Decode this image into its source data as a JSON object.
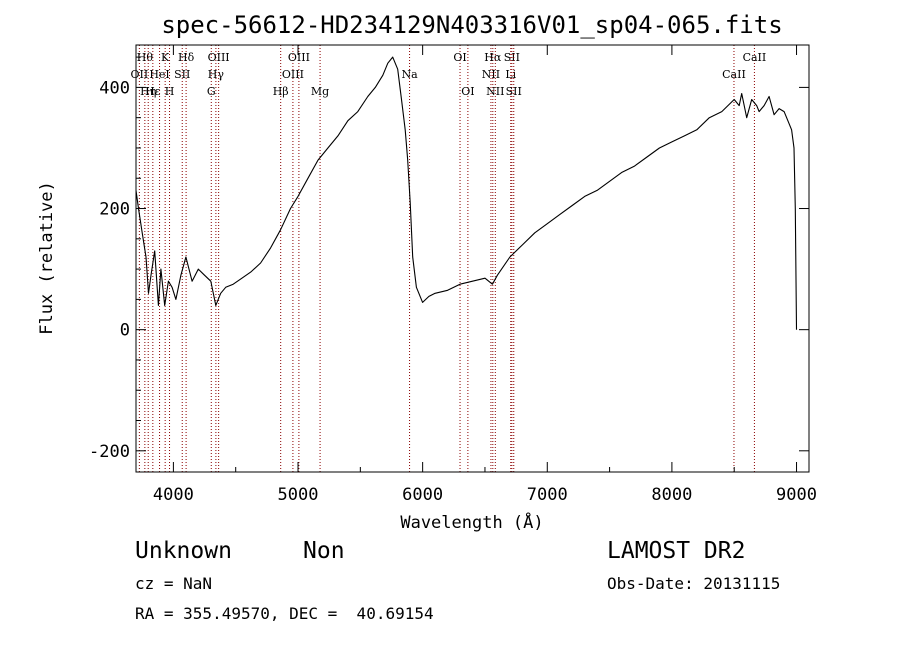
{
  "chart_data": {
    "type": "line",
    "title": "spec-56612-HD234129N403316V01_sp04-065.fits",
    "xlabel": "Wavelength (Å)",
    "ylabel": "Flux (relative)",
    "xlim": [
      3700,
      9100
    ],
    "ylim": [
      -235,
      470
    ],
    "x_ticks": [
      4000,
      5000,
      6000,
      7000,
      8000,
      9000
    ],
    "y_ticks": [
      -200,
      0,
      200,
      400
    ],
    "series": [
      {
        "x": [
          3700,
          3720,
          3750,
          3780,
          3800,
          3820,
          3850,
          3880,
          3900,
          3930,
          3960,
          3990,
          4020,
          4060,
          4100,
          4150,
          4200,
          4250,
          4300,
          4340,
          4380,
          4420,
          4480,
          4550,
          4620,
          4700,
          4780,
          4860,
          4940,
          5000,
          5080,
          5160,
          5240,
          5320,
          5400,
          5480,
          5560,
          5620,
          5680,
          5720,
          5760,
          5800,
          5830,
          5860,
          5880,
          5900,
          5920,
          5950,
          6000,
          6050,
          6100,
          6200,
          6300,
          6400,
          6500,
          6560,
          6600,
          6700,
          6800,
          6900,
          7000,
          7100,
          7200,
          7300,
          7400,
          7500,
          7600,
          7700,
          7800,
          7900,
          8000,
          8100,
          8200,
          8300,
          8400,
          8500,
          8540,
          8560,
          8600,
          8640,
          8680,
          8700,
          8740,
          8780,
          8820,
          8860,
          8900,
          8940,
          8960,
          8980,
          8990,
          9000
        ],
        "y": [
          230,
          200,
          160,
          120,
          60,
          90,
          130,
          40,
          100,
          40,
          80,
          70,
          50,
          90,
          120,
          80,
          100,
          90,
          80,
          40,
          60,
          70,
          75,
          85,
          95,
          110,
          135,
          165,
          200,
          220,
          250,
          280,
          300,
          320,
          345,
          360,
          385,
          400,
          420,
          440,
          450,
          430,
          380,
          330,
          280,
          210,
          120,
          70,
          45,
          55,
          60,
          65,
          75,
          80,
          85,
          75,
          90,
          120,
          140,
          160,
          175,
          190,
          205,
          220,
          230,
          245,
          260,
          270,
          285,
          300,
          310,
          320,
          330,
          350,
          360,
          380,
          370,
          390,
          350,
          380,
          370,
          360,
          370,
          385,
          355,
          365,
          360,
          340,
          330,
          300,
          200,
          0
        ]
      }
    ],
    "line_markers": [
      {
        "x": 3727,
        "label": "OII",
        "row": 2
      },
      {
        "x": 3771,
        "label": "Hθ",
        "row": 1
      },
      {
        "x": 3798,
        "label": "Hη",
        "row": 3
      },
      {
        "x": 3835,
        "label": "Hε",
        "row": 3
      },
      {
        "x": 3889,
        "label": "HeI",
        "row": 2
      },
      {
        "x": 3934,
        "label": "K",
        "row": 1
      },
      {
        "x": 3969,
        "label": "H",
        "row": 3
      },
      {
        "x": 4071,
        "label": "SII",
        "row": 2
      },
      {
        "x": 4102,
        "label": "Hδ",
        "row": 1
      },
      {
        "x": 4304,
        "label": "G",
        "row": 3
      },
      {
        "x": 4341,
        "label": "Hγ",
        "row": 2
      },
      {
        "x": 4363,
        "label": "OIII",
        "row": 1
      },
      {
        "x": 4861,
        "label": "Hβ",
        "row": 3
      },
      {
        "x": 4959,
        "label": "OIII",
        "row": 2
      },
      {
        "x": 5007,
        "label": "OIII",
        "row": 1
      },
      {
        "x": 5177,
        "label": "Mg",
        "row": 3
      },
      {
        "x": 5895,
        "label": "Na",
        "row": 2
      },
      {
        "x": 6300,
        "label": "OI",
        "row": 1
      },
      {
        "x": 6363,
        "label": "OI",
        "row": 3
      },
      {
        "x": 6548,
        "label": "NII",
        "row": 2
      },
      {
        "x": 6563,
        "label": "Hα",
        "row": 1
      },
      {
        "x": 6583,
        "label": "NII",
        "row": 3
      },
      {
        "x": 6707,
        "label": "Li",
        "row": 2
      },
      {
        "x": 6716,
        "label": "SII",
        "row": 1
      },
      {
        "x": 6731,
        "label": "SII",
        "row": 3
      },
      {
        "x": 8498,
        "label": "CaII",
        "row": 2
      },
      {
        "x": 8662,
        "label": "CaII",
        "row": 1
      }
    ],
    "grid": false,
    "line_color": "#000000",
    "marker_color": "#8b0000"
  },
  "info": {
    "class": "Unknown",
    "subclass": "Non",
    "cz": "cz = NaN",
    "coords": "RA = 355.49570, DEC =  40.69154",
    "survey": "LAMOST DR2",
    "obs_date": "Obs-Date: 20131115"
  }
}
